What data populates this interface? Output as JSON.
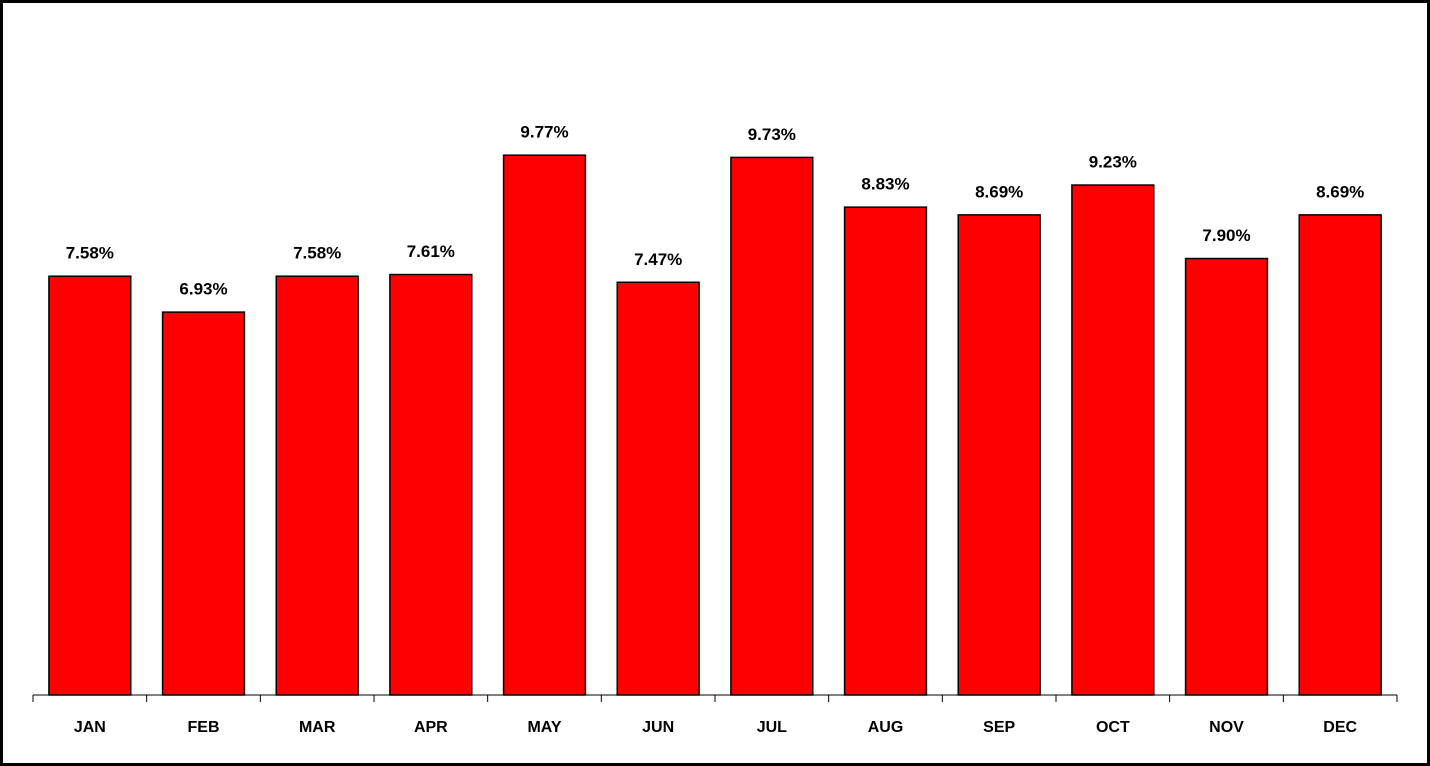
{
  "chart_data": {
    "type": "bar",
    "categories": [
      "JAN",
      "FEB",
      "MAR",
      "APR",
      "MAY",
      "JUN",
      "JUL",
      "AUG",
      "SEP",
      "OCT",
      "NOV",
      "DEC"
    ],
    "values": [
      7.58,
      6.93,
      7.58,
      7.61,
      9.77,
      7.47,
      9.73,
      8.83,
      8.69,
      9.23,
      7.9,
      8.69
    ],
    "value_labels": [
      "7.58%",
      "6.93%",
      "7.58%",
      "7.61%",
      "9.77%",
      "7.47%",
      "9.73%",
      "8.83%",
      "8.69%",
      "9.23%",
      "7.90%",
      "8.69%"
    ],
    "color": "#ff0000",
    "ylim": [
      0,
      10
    ]
  }
}
